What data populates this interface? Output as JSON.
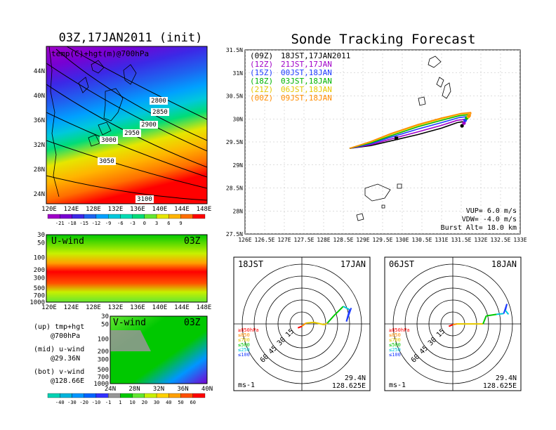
{
  "left_map": {
    "title": "03Z,17JAN2011 (init)",
    "overlay_label": "temp(C)+hgt(m)@700hPa",
    "lat_labels": [
      "44N",
      "40N",
      "36N",
      "32N",
      "28N",
      "24N"
    ],
    "lon_labels": [
      "120E",
      "124E",
      "128E",
      "132E",
      "136E",
      "140E",
      "144E",
      "148E"
    ],
    "contour_labels": [
      "2800",
      "2850",
      "2900",
      "2950",
      "3000",
      "3050",
      "3100"
    ],
    "colorbar_labels": [
      "-21",
      "-18",
      "-15",
      "-12",
      "-9",
      "-6",
      "-3",
      "0",
      "3",
      "6",
      "9"
    ],
    "colorbar_colors": [
      "#a000c8",
      "#7800d2",
      "#3c28e6",
      "#1e64f0",
      "#00a0ff",
      "#00c8dc",
      "#00dcb4",
      "#00dc78",
      "#64e632",
      "#e6e600",
      "#ffb400",
      "#ff6e00",
      "#ff0000"
    ]
  },
  "u_panel": {
    "label": "U-wind",
    "time": "03Z",
    "levels": [
      "30",
      "50",
      "100",
      "200",
      "300",
      "500",
      "700",
      "1000"
    ],
    "lon_labels": [
      "120E",
      "124E",
      "128E",
      "132E",
      "136E",
      "140E",
      "144E",
      "148E"
    ]
  },
  "v_panel": {
    "label": "V-wind",
    "time": "03Z",
    "levels": [
      "30",
      "50",
      "100",
      "200",
      "300",
      "500",
      "700",
      "1000"
    ],
    "lat_labels": [
      "24N",
      "28N",
      "32N",
      "36N",
      "40N"
    ]
  },
  "side_notes": {
    "up_line1": "(up) tmp+hgt",
    "up_line2": "@700hPa",
    "mid_line1": "(mid) u-wind",
    "mid_line2": "@29.36N",
    "bot_line1": "(bot) v-wind",
    "bot_line2": "@128.66E"
  },
  "wind_colorbar": {
    "labels": [
      "-40",
      "-30",
      "-20",
      "-10",
      "-1",
      "1",
      "10",
      "20",
      "30",
      "40",
      "50",
      "60"
    ],
    "colors": [
      "#00d2b4",
      "#00b4dc",
      "#0096ff",
      "#0064ff",
      "#3232ff",
      "#969696",
      "#00c800",
      "#64e632",
      "#c8f000",
      "#ffd200",
      "#ffa000",
      "#ff5000",
      "#ff0000"
    ]
  },
  "tracking": {
    "title": "Sonde Tracking Forecast",
    "lat_labels": [
      "31.5N",
      "31N",
      "30.5N",
      "30N",
      "29.5N",
      "29N",
      "28.5N",
      "28N",
      "27.5N"
    ],
    "lon_labels": [
      "126E",
      "126.5E",
      "127E",
      "127.5E",
      "128E",
      "128.5E",
      "129E",
      "129.5E",
      "130E",
      "130.5E",
      "131E",
      "131.5E",
      "132E",
      "132.5E",
      "133E"
    ],
    "legend": [
      {
        "code": "(09Z)",
        "time": "18JST,17JAN2011",
        "color": "#000000"
      },
      {
        "code": "(12Z)",
        "time": "21JST,17JAN",
        "color": "#a000c8"
      },
      {
        "code": "(15Z)",
        "time": "00JST,18JAN",
        "color": "#1e3cff"
      },
      {
        "code": "(18Z)",
        "time": "03JST,18JAN",
        "color": "#00b400"
      },
      {
        "code": "(21Z)",
        "time": "06JST,18JAN",
        "color": "#e6c800"
      },
      {
        "code": "(00Z)",
        "time": "09JST,18JAN",
        "color": "#ff8c00"
      }
    ],
    "vup": "VUP= 6.0 m/s",
    "vdw": "VDW= -4.0 m/s",
    "burst": "Burst Alt= 18.0 km"
  },
  "chart_data": [
    {
      "type": "line",
      "title": "Sonde Tracking Forecast",
      "xlabel": "",
      "ylabel": "",
      "xlim": [
        126,
        133
      ],
      "ylim": [
        27.5,
        31.5
      ],
      "series": [
        {
          "name": "(09Z) 18JST,17JAN2011",
          "color": "#000000",
          "launch": [
            128.66,
            29.36
          ],
          "ascent": [
            [
              128.66,
              29.36
            ],
            [
              129.2,
              29.42
            ],
            [
              129.7,
              29.52
            ],
            [
              130.4,
              29.66
            ],
            [
              131.0,
              29.8
            ],
            [
              131.4,
              29.92
            ],
            [
              131.55,
              29.94
            ]
          ],
          "descent": [
            [
              131.55,
              29.94
            ],
            [
              131.55,
              29.9
            ],
            [
              131.52,
              29.85
            ]
          ]
        },
        {
          "name": "(12Z) 21JST,17JAN",
          "color": "#a000c8",
          "launch": [
            128.66,
            29.36
          ],
          "ascent": [
            [
              128.66,
              29.36
            ],
            [
              129.2,
              29.44
            ],
            [
              129.7,
              29.56
            ],
            [
              130.4,
              29.72
            ],
            [
              131.0,
              29.86
            ],
            [
              131.4,
              29.97
            ],
            [
              131.6,
              29.99
            ]
          ],
          "descent": [
            [
              131.6,
              29.99
            ],
            [
              131.6,
              29.95
            ],
            [
              131.57,
              29.91
            ]
          ]
        },
        {
          "name": "(15Z) 00JST,18JAN",
          "color": "#1e3cff",
          "launch": [
            128.66,
            29.36
          ],
          "ascent": [
            [
              128.66,
              29.36
            ],
            [
              129.2,
              29.46
            ],
            [
              129.7,
              29.6
            ],
            [
              130.4,
              29.78
            ],
            [
              131.0,
              29.92
            ],
            [
              131.45,
              30.03
            ],
            [
              131.65,
              30.05
            ]
          ],
          "descent": [
            [
              131.65,
              30.05
            ],
            [
              131.64,
              30.0
            ],
            [
              131.6,
              29.97
            ]
          ]
        },
        {
          "name": "(18Z) 03JST,18JAN",
          "color": "#00b400",
          "launch": [
            128.66,
            29.36
          ],
          "ascent": [
            [
              128.66,
              29.36
            ],
            [
              129.2,
              29.48
            ],
            [
              129.7,
              29.63
            ],
            [
              130.4,
              29.83
            ],
            [
              131.0,
              29.97
            ],
            [
              131.45,
              30.07
            ],
            [
              131.68,
              30.09
            ]
          ],
          "descent": [
            [
              131.68,
              30.09
            ],
            [
              131.67,
              30.05
            ],
            [
              131.64,
              30.02
            ]
          ]
        },
        {
          "name": "(21Z) 06JST,18JAN",
          "color": "#e6c800",
          "launch": [
            128.66,
            29.36
          ],
          "ascent": [
            [
              128.66,
              29.36
            ],
            [
              129.2,
              29.5
            ],
            [
              129.7,
              29.66
            ],
            [
              130.4,
              29.86
            ],
            [
              131.0,
              30.0
            ],
            [
              131.45,
              30.1
            ],
            [
              131.72,
              30.12
            ]
          ],
          "descent": [
            [
              131.72,
              30.12
            ],
            [
              131.71,
              30.08
            ],
            [
              131.68,
              30.05
            ]
          ]
        },
        {
          "name": "(00Z) 09JST,18JAN",
          "color": "#ff8c00",
          "launch": [
            128.66,
            29.36
          ],
          "ascent": [
            [
              128.66,
              29.36
            ],
            [
              129.2,
              29.51
            ],
            [
              129.7,
              29.68
            ],
            [
              130.4,
              29.88
            ],
            [
              131.0,
              30.02
            ],
            [
              131.5,
              30.12
            ],
            [
              131.75,
              30.14
            ]
          ],
          "descent": [
            [
              131.75,
              30.14
            ],
            [
              131.74,
              30.1
            ],
            [
              131.7,
              30.07
            ]
          ]
        }
      ]
    },
    {
      "type": "line",
      "title": "18JST 17JAN hodograph",
      "ring_labels": [
        "15",
        "30",
        "45",
        "60"
      ],
      "legend_levels": [
        "≥850hPa",
        "≤850",
        "≤700",
        "≤500",
        "≤250",
        "≤100"
      ],
      "legend_colors": [
        "#ff0000",
        "#ff8c00",
        "#e6c800",
        "#00c800",
        "#00c8dc",
        "#1e3cff"
      ],
      "unit": "ms-1",
      "location": [
        "29.4N",
        "128.625E"
      ],
      "points_uv": [
        [
          -5,
          -5
        ],
        [
          0,
          -3
        ],
        [
          5,
          1
        ],
        [
          15,
          2
        ],
        [
          28,
          -1
        ],
        [
          32,
          1
        ],
        [
          40,
          10
        ],
        [
          52,
          22
        ],
        [
          60,
          18
        ],
        [
          56,
          3
        ],
        [
          62,
          20
        ]
      ]
    },
    {
      "type": "line",
      "title": "06JST 18JAN hodograph",
      "ring_labels": [
        "15",
        "30",
        "45",
        "60"
      ],
      "legend_levels": [
        "≥850hPa",
        "≤850",
        "≤700",
        "≤500",
        "≤250",
        "≤100"
      ],
      "legend_colors": [
        "#ff0000",
        "#ff8c00",
        "#e6c800",
        "#00c800",
        "#00c8dc",
        "#1e3cff"
      ],
      "unit": "ms-1",
      "location": [
        "29.4N",
        "128.625E"
      ],
      "points_uv": [
        [
          -5,
          -3
        ],
        [
          0,
          -1
        ],
        [
          5,
          0
        ],
        [
          15,
          0
        ],
        [
          28,
          0
        ],
        [
          38,
          0
        ],
        [
          42,
          10
        ],
        [
          55,
          12
        ],
        [
          64,
          13
        ],
        [
          68,
          25
        ],
        [
          66,
          17
        ],
        [
          70,
          12
        ]
      ]
    }
  ],
  "hodo_left": {
    "time": "18JST",
    "date": "17JAN",
    "unit": "ms-1",
    "loc1": "29.4N",
    "loc2": "128.625E"
  },
  "hodo_right": {
    "time": "06JST",
    "date": "18JAN",
    "unit": "ms-1",
    "loc1": "29.4N",
    "loc2": "128.625E"
  }
}
